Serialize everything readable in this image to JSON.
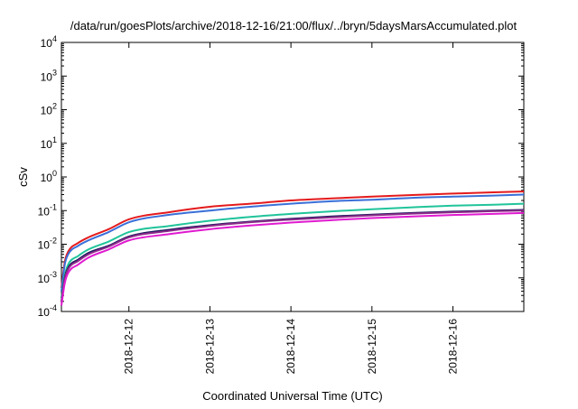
{
  "chart_data": {
    "type": "line",
    "title": "/data/run/goesPlots/archive/2018-12-16/21:00/flux/../bryn/5daysMarsAccumulated.plot",
    "xlabel": "Coordinated Universal Time (UTC)",
    "ylabel": "cSv",
    "x_tick_labels": [
      "2018-12-12",
      "2018-12-13",
      "2018-12-14",
      "2018-12-15",
      "2018-12-16"
    ],
    "y_scale": "log",
    "y_tick_labels": [
      {
        "base": "10",
        "exp": "-4"
      },
      {
        "base": "10",
        "exp": "-3"
      },
      {
        "base": "10",
        "exp": "-2"
      },
      {
        "base": "10",
        "exp": "-1"
      },
      {
        "base": "10",
        "exp": "0"
      },
      {
        "base": "10",
        "exp": "1"
      },
      {
        "base": "10",
        "exp": "2"
      },
      {
        "base": "10",
        "exp": "3"
      },
      {
        "base": "10",
        "exp": "4"
      }
    ],
    "ylim": [
      0.0001,
      10000
    ],
    "xlim": [
      "2018-12-11T04:00",
      "2018-12-16T21:00"
    ],
    "grid": false,
    "legend": "none",
    "x": [
      "2018-12-11T04:00",
      "2018-12-11T05:00",
      "2018-12-11T06:00",
      "2018-12-11T09:00",
      "2018-12-11T12:00",
      "2018-12-11T18:00",
      "2018-12-12T00:00",
      "2018-12-12T12:00",
      "2018-12-13T00:00",
      "2018-12-13T12:00",
      "2018-12-14T00:00",
      "2018-12-14T12:00",
      "2018-12-15T00:00",
      "2018-12-15T12:00",
      "2018-12-16T00:00",
      "2018-12-16T12:00",
      "2018-12-16T21:00"
    ],
    "series": [
      {
        "color": "#e41a1c",
        "values": [
          0.0005,
          0.003,
          0.006,
          0.011,
          0.016,
          0.028,
          0.055,
          0.09,
          0.13,
          0.16,
          0.2,
          0.23,
          0.26,
          0.29,
          0.32,
          0.35,
          0.37
        ]
      },
      {
        "color": "#3a6fd8",
        "values": [
          0.0004,
          0.0025,
          0.005,
          0.009,
          0.013,
          0.023,
          0.045,
          0.075,
          0.1,
          0.13,
          0.16,
          0.19,
          0.21,
          0.24,
          0.26,
          0.28,
          0.3
        ]
      },
      {
        "color": "#20c49a",
        "values": [
          0.00025,
          0.0012,
          0.0025,
          0.0045,
          0.007,
          0.012,
          0.023,
          0.035,
          0.05,
          0.065,
          0.08,
          0.095,
          0.11,
          0.125,
          0.14,
          0.15,
          0.16
        ]
      },
      {
        "color": "#1a1a5e",
        "values": [
          0.0002,
          0.001,
          0.002,
          0.0035,
          0.0055,
          0.009,
          0.017,
          0.027,
          0.037,
          0.047,
          0.057,
          0.067,
          0.076,
          0.085,
          0.093,
          0.1,
          0.105
        ]
      },
      {
        "color": "#8e2a8a",
        "values": [
          0.00018,
          0.0009,
          0.0018,
          0.0032,
          0.005,
          0.0085,
          0.016,
          0.025,
          0.035,
          0.045,
          0.054,
          0.063,
          0.072,
          0.081,
          0.089,
          0.096,
          0.1
        ]
      },
      {
        "color": "#e01ad0",
        "values": [
          0.00015,
          0.0007,
          0.0014,
          0.0025,
          0.004,
          0.007,
          0.013,
          0.02,
          0.028,
          0.036,
          0.044,
          0.052,
          0.06,
          0.067,
          0.074,
          0.08,
          0.085
        ]
      }
    ]
  }
}
